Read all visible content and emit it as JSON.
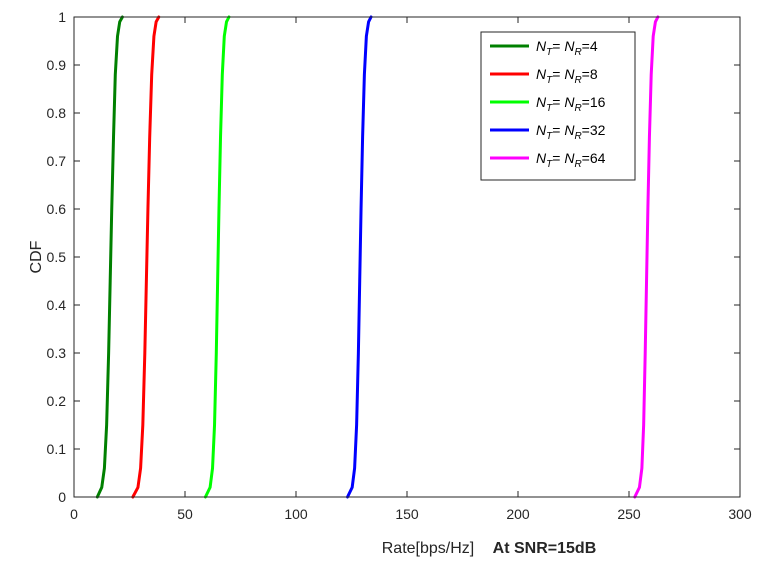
{
  "chart_data": {
    "type": "line",
    "title": "",
    "xlabel": "Rate[bps/Hz]",
    "xlabel_annotation": "At SNR=15dB",
    "ylabel": "CDF",
    "xlim": [
      0,
      300
    ],
    "ylim": [
      0,
      1
    ],
    "xticks": [
      0,
      50,
      100,
      150,
      200,
      250,
      300
    ],
    "yticks": [
      0,
      0.1,
      0.2,
      0.3,
      0.4,
      0.5,
      0.6,
      0.7,
      0.8,
      0.9,
      1
    ],
    "grid": false,
    "legend_position": "top-right",
    "series": [
      {
        "name": "NT= NR=4",
        "label": {
          "sym1": "N",
          "sub1": "T",
          "mid": "= ",
          "sym2": "N",
          "sub2": "R",
          "val": "=4"
        },
        "color": "#008000",
        "x": [
          10.5,
          12.5,
          13.7,
          14.7,
          15.6,
          16.3,
          17.0,
          17.8,
          18.6,
          19.6,
          20.6,
          21.8
        ],
        "y": [
          0,
          0.02,
          0.06,
          0.15,
          0.3,
          0.45,
          0.6,
          0.75,
          0.88,
          0.96,
          0.99,
          1
        ]
      },
      {
        "name": "NT= NR=8",
        "label": {
          "sym1": "N",
          "sub1": "T",
          "mid": "= ",
          "sym2": "N",
          "sub2": "R",
          "val": "=8"
        },
        "color": "#ff0000",
        "x": [
          26.5,
          28.8,
          30.0,
          31.0,
          31.9,
          32.6,
          33.3,
          34.1,
          35.0,
          36.0,
          37.0,
          38.2
        ],
        "y": [
          0,
          0.02,
          0.06,
          0.15,
          0.3,
          0.45,
          0.6,
          0.75,
          0.88,
          0.96,
          0.99,
          1
        ]
      },
      {
        "name": "NT= NR=16",
        "label": {
          "sym1": "N",
          "sub1": "T",
          "mid": "= ",
          "sym2": "N",
          "sub2": "R",
          "val": "=16"
        },
        "color": "#00ff00",
        "x": [
          59.2,
          61.3,
          62.4,
          63.3,
          64.1,
          64.7,
          65.3,
          66.0,
          66.8,
          67.7,
          68.7,
          69.8
        ],
        "y": [
          0,
          0.02,
          0.06,
          0.15,
          0.3,
          0.45,
          0.6,
          0.75,
          0.88,
          0.96,
          0.99,
          1
        ]
      },
      {
        "name": "NT= NR=32",
        "label": {
          "sym1": "N",
          "sub1": "T",
          "mid": "= ",
          "sym2": "N",
          "sub2": "R",
          "val": "=32"
        },
        "color": "#0000ff",
        "x": [
          123.2,
          125.3,
          126.4,
          127.3,
          128.1,
          128.7,
          129.3,
          130.0,
          130.8,
          131.7,
          132.7,
          133.8
        ],
        "y": [
          0,
          0.02,
          0.06,
          0.15,
          0.3,
          0.45,
          0.6,
          0.75,
          0.88,
          0.96,
          0.99,
          1
        ]
      },
      {
        "name": "NT= NR=64",
        "label": {
          "sym1": "N",
          "sub1": "T",
          "mid": "= ",
          "sym2": "N",
          "sub2": "R",
          "val": "=64"
        },
        "color": "#ff00ff",
        "x": [
          252.6,
          254.7,
          255.8,
          256.6,
          257.3,
          257.9,
          258.5,
          259.2,
          260.0,
          260.9,
          261.9,
          263.0
        ],
        "y": [
          0,
          0.02,
          0.06,
          0.15,
          0.3,
          0.45,
          0.6,
          0.75,
          0.88,
          0.96,
          0.99,
          1
        ]
      }
    ]
  }
}
